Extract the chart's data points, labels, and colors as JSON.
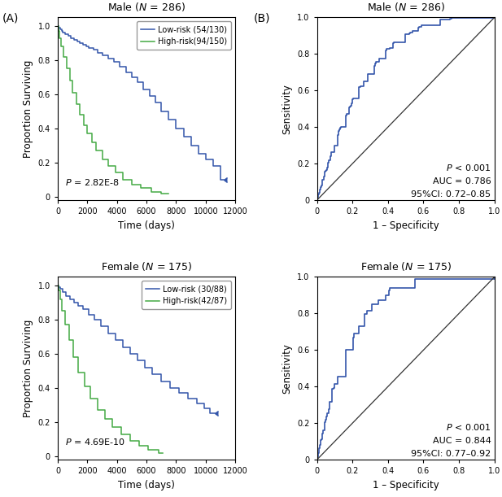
{
  "km_male_low_label": "Low-risk (54/130)",
  "km_male_high_label": "High-risk(94/150)",
  "km_female_low_label": "Low-risk (30/88)",
  "km_female_high_label": "High-risk(42/87)",
  "km_male_p": "$P$ = 2.82E-8",
  "km_female_p": "$P$ = 4.69E-10",
  "low_risk_color": "#3355AA",
  "high_risk_color": "#44AA44",
  "roc_color": "#3355AA",
  "diagonal_color": "#333333",
  "km_xlabel": "Time (days)",
  "km_ylabel": "Proportion Surviving",
  "roc_xlabel": "1 – Specificity",
  "roc_ylabel": "Sensitivity",
  "km_xlim": [
    0,
    12000
  ],
  "km_ylim": [
    -0.02,
    1.05
  ],
  "km_xticks": [
    0,
    2000,
    4000,
    6000,
    8000,
    10000,
    12000
  ],
  "km_yticks": [
    0.0,
    0.2,
    0.4,
    0.6,
    0.8,
    1.0
  ],
  "roc_xlim": [
    0,
    1.0
  ],
  "roc_ylim": [
    0,
    1.0
  ],
  "roc_ticks": [
    0.0,
    0.2,
    0.4,
    0.6,
    0.8,
    1.0
  ],
  "roc_male_p": "$P$ < 0.001",
  "roc_male_auc": "AUC = 0.786",
  "roc_male_ci": "95%CI: 0.72–0.85",
  "roc_female_p": "$P$ < 0.001",
  "roc_female_auc": "AUC = 0.844",
  "roc_female_ci": "95%CI: 0.77–0.92"
}
